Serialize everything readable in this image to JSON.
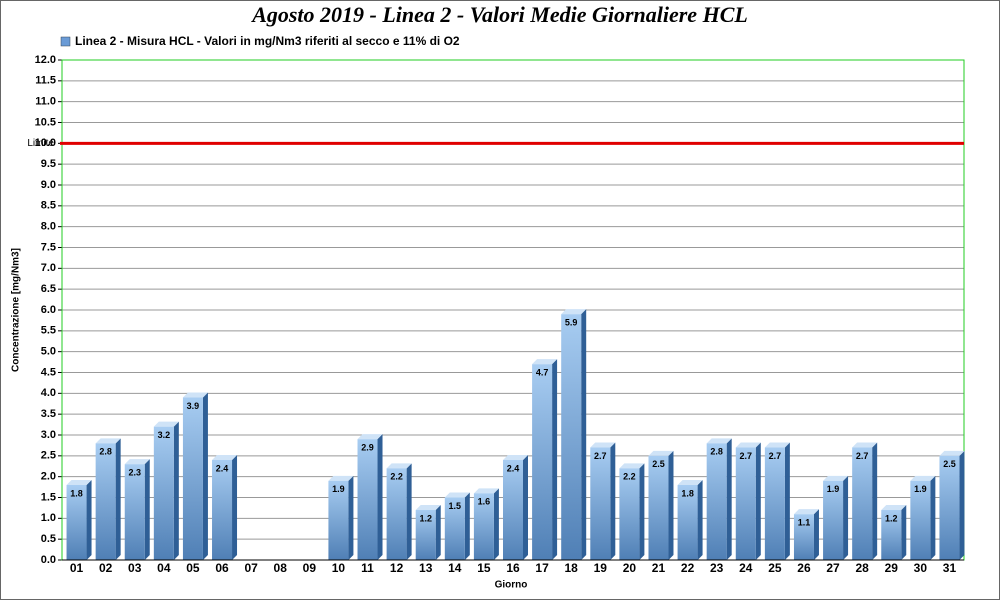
{
  "chart_data": {
    "type": "bar",
    "title": "Agosto 2019 - Linea 2 - Valori Medie Giornaliere HCL",
    "x_label": "Giorno",
    "y_label": "Concentrazione [mg/Nm3]",
    "categories": [
      "01",
      "02",
      "03",
      "04",
      "05",
      "06",
      "07",
      "08",
      "09",
      "10",
      "11",
      "12",
      "13",
      "14",
      "15",
      "16",
      "17",
      "18",
      "19",
      "20",
      "21",
      "22",
      "23",
      "24",
      "25",
      "26",
      "27",
      "28",
      "29",
      "30",
      "31"
    ],
    "series": [
      {
        "name": "Linea 2 - Misura HCL - Valori in mg/Nm3 riferiti al secco e 11% di O2",
        "color": "#6a9bd6",
        "values": [
          1.8,
          2.8,
          2.3,
          3.2,
          3.9,
          2.4,
          null,
          null,
          null,
          1.9,
          2.9,
          2.2,
          1.2,
          1.5,
          1.6,
          2.4,
          4.7,
          5.9,
          2.7,
          2.2,
          2.5,
          1.8,
          2.8,
          2.7,
          2.7,
          1.1,
          1.9,
          2.7,
          1.2,
          1.9,
          2.5
        ]
      }
    ],
    "ylim": [
      0,
      12
    ],
    "yticks": [
      {
        "value": 0,
        "label": "0.0"
      },
      0.5,
      {
        "value": 1,
        "label": "1.0"
      },
      1.5,
      {
        "value": 2,
        "label": "2.0"
      },
      2.5,
      {
        "value": 3,
        "label": "3.0"
      },
      3.5,
      {
        "value": 4,
        "label": "4.0"
      },
      4.5,
      {
        "value": 5,
        "label": "5.0"
      },
      5.5,
      {
        "value": 6,
        "label": "6.0"
      },
      6.5,
      {
        "value": 7,
        "label": "7.0"
      },
      7.5,
      {
        "value": 8,
        "label": "8.0"
      },
      8.5,
      {
        "value": 9,
        "label": "9.0"
      },
      9.5,
      {
        "value": 10,
        "label": "10.0"
      },
      10.5,
      {
        "value": 11,
        "label": "11.0"
      },
      11.5,
      {
        "value": 12,
        "label": "12.0"
      }
    ],
    "grid": true,
    "threshold": {
      "label": "Limite",
      "value": 10,
      "color": "#e00000"
    }
  }
}
